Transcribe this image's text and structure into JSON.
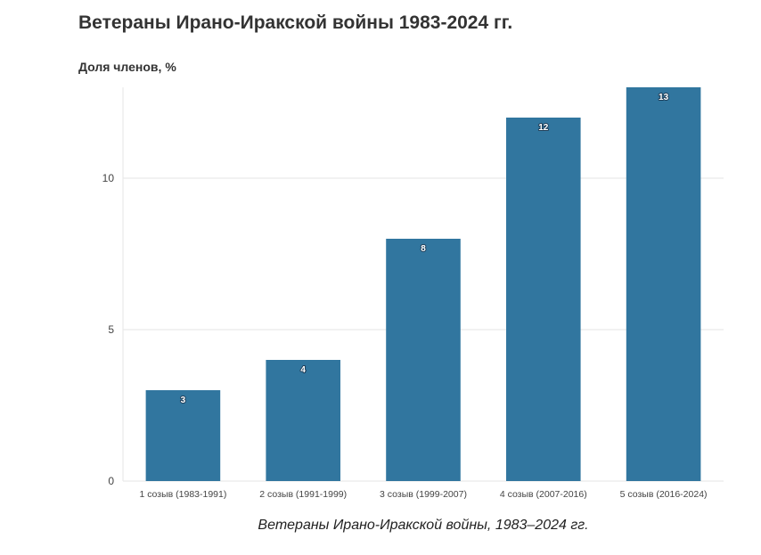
{
  "title": "Ветераны Ирано-Иракской войны 1983-2024 гг.",
  "caption": "Ветераны Ирано-Иракской войны, 1983–2024 гг.",
  "colors": {
    "bar": "#31769f",
    "grid": "#e6e6e6",
    "text": "#333333"
  },
  "chart_data": {
    "type": "bar",
    "title": "Ветераны Ирано-Иракской войны 1983-2024 гг.",
    "ylabel": "Доля членов, %",
    "xlabel": "",
    "categories": [
      "1 созыв (1983-1991)",
      "2 созыв (1991-1999)",
      "3 созыв (1999-2007)",
      "4 созыв (2007-2016)",
      "5 созыв (2016-2024)"
    ],
    "values": [
      3,
      4,
      8,
      12,
      13
    ],
    "data_labels": [
      "3",
      "4",
      "8",
      "12",
      "13"
    ],
    "yticks": [
      0,
      5,
      10
    ],
    "ytick_labels": [
      "0",
      "5",
      "10"
    ],
    "ylim": [
      0,
      13
    ],
    "grid": true,
    "legend": "none"
  }
}
